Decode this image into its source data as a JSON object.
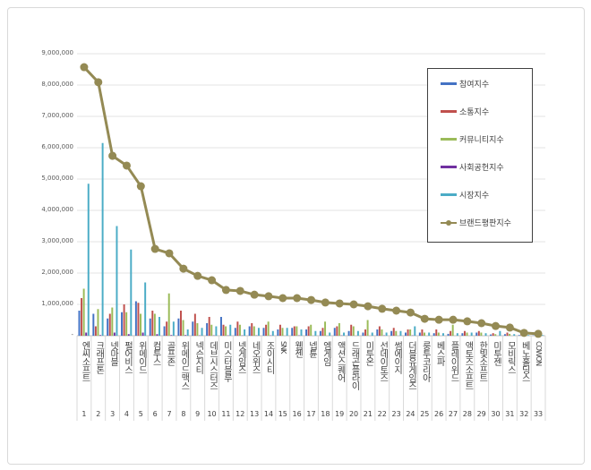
{
  "chart_data": {
    "type": "bar",
    "title": "",
    "ylim": [
      0,
      9000000
    ],
    "yticks": [
      "-",
      "1,000,000",
      "2,000,000",
      "3,000,000",
      "4,000,000",
      "5,000,000",
      "6,000,000",
      "7,000,000",
      "8,000,000",
      "9,000,000"
    ],
    "grid": true,
    "legend_position": "right",
    "ranks": [
      "1",
      "2",
      "3",
      "4",
      "5",
      "6",
      "7",
      "8",
      "9",
      "10",
      "11",
      "12",
      "13",
      "14",
      "15",
      "16",
      "17",
      "18",
      "19",
      "20",
      "21",
      "22",
      "23",
      "24",
      "25",
      "26",
      "27",
      "28",
      "29",
      "30",
      "31",
      "32",
      "33"
    ],
    "categories": [
      "엔씨소프트",
      "크래프톤",
      "넷마블",
      "펄어비스",
      "위메이드",
      "컴투스",
      "골프존",
      "위메이드맥스",
      "넥슨지티",
      "데브시스터즈",
      "미스터블루",
      "넷게임즈",
      "네오위즈",
      "조이시티",
      "SNK",
      "웹젠",
      "넵튠",
      "엠게임",
      "액션스퀘어",
      "드래곤플라이",
      "미투온",
      "선데이토즈",
      "썸에이지",
      "더블유게임즈",
      "룽투코리아",
      "베스파",
      "플레이위드",
      "액토즈소프트",
      "한빛소프트",
      "미투젠",
      "모비릭스",
      "베노홀딩스",
      "COWON"
    ],
    "series": [
      {
        "name": "참여지수",
        "kind": "bar",
        "color": "#4472c4",
        "values": [
          800000,
          700000,
          550000,
          750000,
          1100000,
          550000,
          300000,
          550000,
          450000,
          400000,
          600000,
          250000,
          300000,
          250000,
          200000,
          250000,
          200000,
          150000,
          250000,
          150000,
          100000,
          200000,
          150000,
          100000,
          100000,
          80000,
          60000,
          80000,
          100000,
          40000,
          50000,
          20000,
          10000
        ]
      },
      {
        "name": "소통지수",
        "kind": "bar",
        "color": "#c0504d",
        "values": [
          1200000,
          300000,
          700000,
          1000000,
          1050000,
          800000,
          450000,
          800000,
          700000,
          600000,
          350000,
          450000,
          400000,
          350000,
          350000,
          300000,
          300000,
          250000,
          300000,
          350000,
          200000,
          300000,
          250000,
          200000,
          200000,
          200000,
          150000,
          150000,
          150000,
          80000,
          100000,
          60000,
          20000
        ]
      },
      {
        "name": "커뮤니티지수",
        "kind": "bar",
        "color": "#9bbb59",
        "values": [
          1500000,
          850000,
          900000,
          750000,
          700000,
          700000,
          1350000,
          500000,
          400000,
          350000,
          300000,
          350000,
          300000,
          450000,
          250000,
          300000,
          350000,
          450000,
          400000,
          300000,
          500000,
          200000,
          150000,
          200000,
          100000,
          100000,
          350000,
          100000,
          100000,
          50000,
          60000,
          40000,
          10000
        ]
      },
      {
        "name": "사회공헌지수",
        "kind": "bar",
        "color": "#7030a0",
        "values": [
          100000,
          20000,
          100000,
          50000,
          100000,
          50000,
          20000,
          20000,
          10000,
          10000,
          10000,
          10000,
          10000,
          10000,
          0,
          10000,
          0,
          0,
          10000,
          0,
          0,
          10000,
          0,
          10000,
          0,
          0,
          0,
          0,
          0,
          0,
          0,
          0,
          0
        ]
      },
      {
        "name": "시장지수",
        "kind": "bar",
        "color": "#4bacc6",
        "values": [
          4850000,
          6150000,
          3500000,
          2750000,
          1700000,
          600000,
          450000,
          200000,
          250000,
          300000,
          350000,
          200000,
          250000,
          150000,
          250000,
          200000,
          150000,
          100000,
          100000,
          150000,
          100000,
          100000,
          150000,
          300000,
          100000,
          80000,
          80000,
          100000,
          80000,
          150000,
          50000,
          20000,
          20000
        ]
      },
      {
        "name": "브랜드평판지수",
        "kind": "line",
        "color": "#948a54",
        "values": [
          8570000,
          8090000,
          5740000,
          5430000,
          4770000,
          2770000,
          2630000,
          2140000,
          1910000,
          1770000,
          1460000,
          1430000,
          1310000,
          1260000,
          1200000,
          1200000,
          1140000,
          1060000,
          1030000,
          1000000,
          940000,
          860000,
          800000,
          740000,
          540000,
          510000,
          510000,
          460000,
          400000,
          310000,
          260000,
          90000,
          60000
        ]
      }
    ]
  }
}
